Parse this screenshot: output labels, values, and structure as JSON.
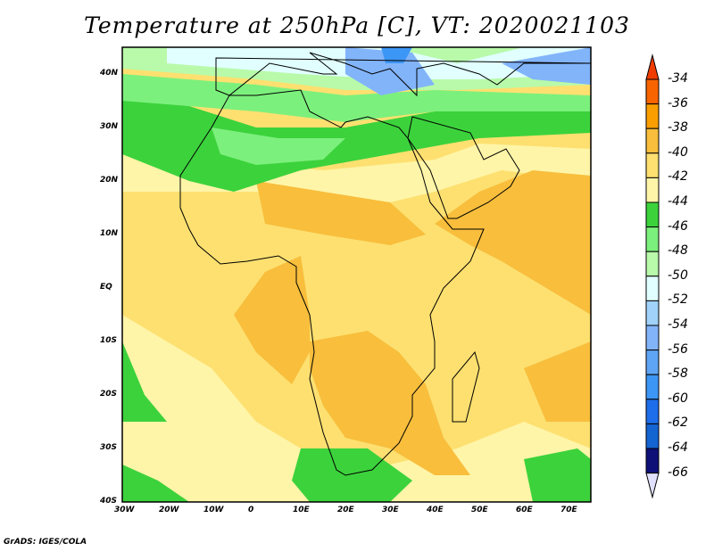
{
  "title": "Temperature at 250hPa [C], VT: 2020021103",
  "footer": "GrADS: IGES/COLA",
  "lon_ticks": [
    {
      "v": -30,
      "label": "30W"
    },
    {
      "v": -20,
      "label": "20W"
    },
    {
      "v": -10,
      "label": "10W"
    },
    {
      "v": 0,
      "label": "0"
    },
    {
      "v": 10,
      "label": "10E"
    },
    {
      "v": 20,
      "label": "20E"
    },
    {
      "v": 30,
      "label": "30E"
    },
    {
      "v": 40,
      "label": "40E"
    },
    {
      "v": 50,
      "label": "50E"
    },
    {
      "v": 60,
      "label": "60E"
    },
    {
      "v": 70,
      "label": "70E"
    }
  ],
  "lat_ticks": [
    {
      "v": 40,
      "label": "40N"
    },
    {
      "v": 30,
      "label": "30N"
    },
    {
      "v": 20,
      "label": "20N"
    },
    {
      "v": 10,
      "label": "10N"
    },
    {
      "v": 0,
      "label": "EQ"
    },
    {
      "v": -10,
      "label": "10S"
    },
    {
      "v": -20,
      "label": "20S"
    },
    {
      "v": -30,
      "label": "30S"
    },
    {
      "v": -40,
      "label": "40S"
    }
  ],
  "colorbar": {
    "labels": [
      "-34",
      "-36",
      "-38",
      "-40",
      "-42",
      "-44",
      "-46",
      "-48",
      "-50",
      "-52",
      "-54",
      "-56",
      "-58",
      "-60",
      "-62",
      "-64",
      "-66"
    ],
    "over_color": "#f03c00",
    "under_color": "#e1e1ff",
    "colors": [
      "#f86400",
      "#fa9e00",
      "#f8be3c",
      "#fde070",
      "#fff5a8",
      "#3cd23c",
      "#7cf07c",
      "#b8faaa",
      "#e1ffff",
      "#a0d2fa",
      "#82b4fa",
      "#5fa5f5",
      "#3c96f5",
      "#1e6eeb",
      "#1464d2",
      "#0f0f78"
    ]
  }
}
